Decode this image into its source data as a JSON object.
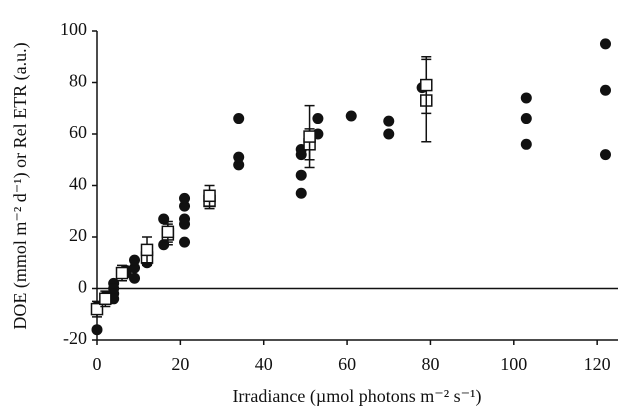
{
  "chart_data": {
    "type": "scatter",
    "xlabel": "Irradiance (µmol photons m⁻² s⁻¹)",
    "ylabel": "DOE  (mmol m⁻² d⁻¹) or Rel ETR (a.u.)",
    "xlim": [
      0,
      125
    ],
    "ylim": [
      -20,
      100
    ],
    "xticks": [
      0,
      20,
      40,
      60,
      80,
      100,
      120
    ],
    "yticks": [
      -20,
      0,
      20,
      40,
      60,
      80,
      100
    ],
    "series": [
      {
        "marker": "circle",
        "color": "#111111",
        "x": [
          0,
          0,
          2,
          4,
          4,
          4,
          4,
          7,
          7,
          9,
          9,
          9,
          12,
          12,
          16,
          16,
          21,
          21,
          21,
          21,
          21,
          34,
          34,
          34,
          49,
          49,
          49,
          49,
          53,
          53,
          61,
          70,
          70,
          78,
          103,
          103,
          103,
          122,
          122,
          122
        ],
        "values": [
          -16,
          -7,
          -3,
          2,
          0,
          -2,
          -4,
          6,
          7,
          4,
          8,
          11,
          10,
          13,
          17,
          27,
          18,
          25,
          27,
          32,
          35,
          48,
          51,
          66,
          37,
          44,
          52,
          54,
          60,
          66,
          67,
          60,
          65,
          78,
          56,
          66,
          74,
          52,
          77,
          95
        ]
      },
      {
        "marker": "square",
        "color": "#111111",
        "x": [
          0,
          2,
          6,
          12,
          12,
          17,
          17,
          27,
          27,
          51,
          51,
          79,
          79
        ],
        "values": [
          -8,
          -4,
          6,
          12,
          15,
          21,
          22,
          34,
          36,
          56,
          59,
          73,
          79
        ],
        "errors": [
          3,
          3,
          3,
          3,
          5,
          4,
          4,
          3,
          4,
          6,
          12,
          16,
          11
        ]
      }
    ]
  }
}
